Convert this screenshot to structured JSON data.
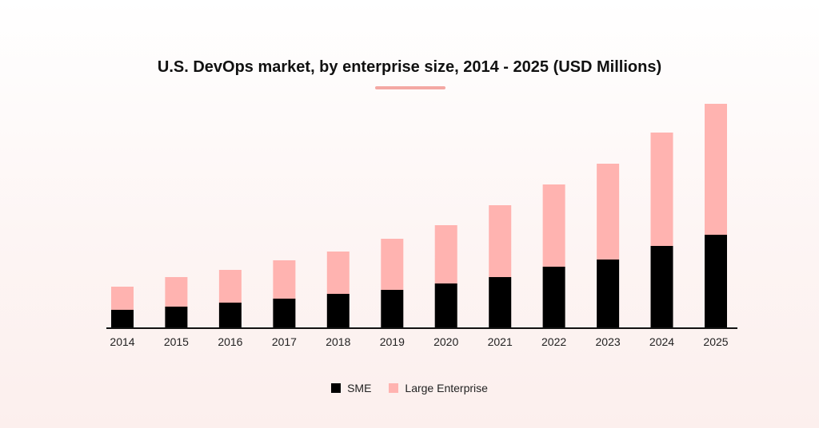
{
  "colors": {
    "sme": "#000000",
    "large_enterprise": "#ffb3b0",
    "accent": "#f4a8a3",
    "axis": "#111111"
  },
  "chart_data": {
    "type": "bar",
    "stacked": true,
    "title": "U.S. DevOps market, by enterprise size, 2014 - 2025 (USD Millions)",
    "xlabel": "",
    "ylabel": "",
    "categories": [
      "2014",
      "2015",
      "2016",
      "2017",
      "2018",
      "2019",
      "2020",
      "2021",
      "2022",
      "2023",
      "2024",
      "2025"
    ],
    "series": [
      {
        "name": "SME",
        "color": "#000000",
        "values": [
          22,
          26,
          31,
          36,
          42,
          47,
          55,
          63,
          76,
          85,
          102,
          116
        ]
      },
      {
        "name": "Large Enterprise",
        "color": "#ffb3b0",
        "values": [
          29,
          37,
          41,
          48,
          53,
          64,
          73,
          90,
          103,
          120,
          142,
          164
        ]
      }
    ],
    "ylim": [
      0,
      285
    ],
    "grid": false,
    "legend_position": "bottom"
  }
}
